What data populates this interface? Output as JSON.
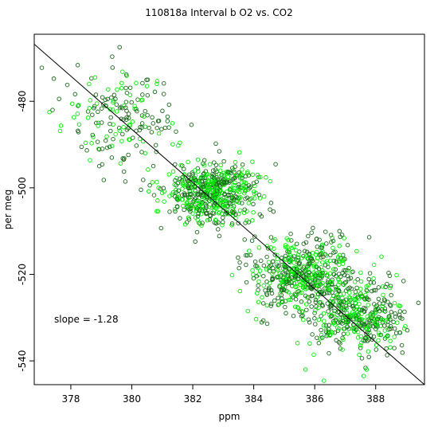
{
  "chart_data": {
    "type": "scatter",
    "title": "110818a   Interval b O2 vs. CO2",
    "xlabel": "ppm",
    "ylabel": "per meg",
    "xlim": [
      376.8,
      389.6
    ],
    "ylim": [
      -545.5,
      -464.5
    ],
    "xticks": [
      378,
      380,
      382,
      384,
      386,
      388
    ],
    "yticks": [
      -480,
      -500,
      -520,
      -540
    ],
    "grid": false,
    "annotation": "slope =  -1.28",
    "colors": {
      "dark_points": "#1a6b1a",
      "bright_points": "#00ee00",
      "fit_line": "#000000"
    },
    "fit_line": {
      "slope": -1.28,
      "points": [
        [
          376.8,
          -466.8
        ],
        [
          389.6,
          -546.5
        ]
      ]
    },
    "clusters": [
      {
        "cx": 379.8,
        "cy": -484,
        "sx": 0.9,
        "sy": 5.5,
        "n": 180
      },
      {
        "cx": 382.6,
        "cy": -501,
        "sx": 0.75,
        "sy": 3.5,
        "n": 560
      },
      {
        "cx": 385.6,
        "cy": -520,
        "sx": 0.9,
        "sy": 4.5,
        "n": 520
      },
      {
        "cx": 387.4,
        "cy": -530,
        "sx": 0.8,
        "sy": 4.0,
        "n": 380
      }
    ],
    "outliers": [
      [
        379.6,
        -467.5
      ],
      [
        377.3,
        -482.5
      ],
      [
        377.4,
        -482.0
      ],
      [
        385.7,
        -542
      ],
      [
        387.7,
        -542
      ],
      [
        388.8,
        -533.5
      ],
      [
        378.6,
        -476.0
      ],
      [
        378.1,
        -483.7
      ]
    ]
  }
}
